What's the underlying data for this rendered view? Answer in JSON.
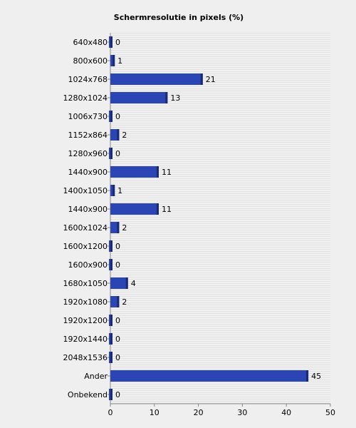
{
  "chart_data": {
    "type": "bar",
    "orientation": "horizontal",
    "title": "Schermresolutie in pixels (%)",
    "xlabel": "",
    "ylabel": "",
    "categories": [
      "640x480",
      "800x600",
      "1024x768",
      "1280x1024",
      "1006x730",
      "1152x864",
      "1280x960",
      "1440x900",
      "1400x1050",
      "1440x900",
      "1600x1024",
      "1600x1200",
      "1600x900",
      "1680x1050",
      "1920x1080",
      "1920x1200",
      "1920x1440",
      "2048x1536",
      "Ander",
      "Onbekend"
    ],
    "values": [
      0,
      1,
      21,
      13,
      0,
      2,
      0,
      11,
      1,
      11,
      2,
      0,
      0,
      4,
      2,
      0,
      0,
      0,
      45,
      0
    ],
    "xlim": [
      0,
      50
    ],
    "xticks": [
      0,
      10,
      20,
      30,
      40,
      50
    ],
    "grid": true,
    "legend": "none",
    "colors": {
      "bar": "#2b45b5",
      "bar_edge": "#1a2a70",
      "plot_bg": "#e2e2e2",
      "grid": "#ffffff",
      "page_bg": "#efefef"
    }
  }
}
